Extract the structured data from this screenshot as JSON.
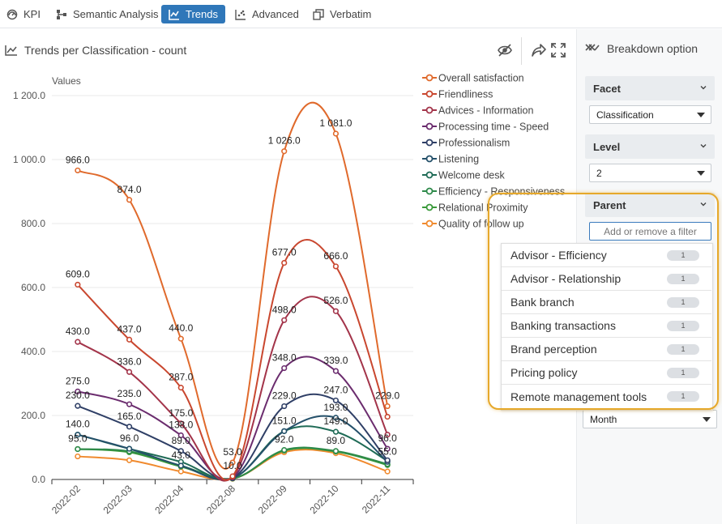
{
  "tabs": [
    {
      "label": "KPI",
      "icon": "gauge-icon"
    },
    {
      "label": "Semantic Analysis",
      "icon": "hierarchy-icon"
    },
    {
      "label": "Trends",
      "icon": "trend-icon",
      "active": true
    },
    {
      "label": "Advanced",
      "icon": "scatter-icon"
    },
    {
      "label": "Verbatim",
      "icon": "copy-icon"
    }
  ],
  "chart_panel": {
    "title": "Trends per Classification - count",
    "icons": [
      "eye-off-icon",
      "share-icon",
      "fullscreen-icon"
    ]
  },
  "sidebar": {
    "title": "Breakdown option",
    "facet": {
      "label": "Facet",
      "value": "Classification"
    },
    "level": {
      "label": "Level",
      "value": "2"
    },
    "parent": {
      "label": "Parent",
      "placeholder": "Add or remove a filter"
    },
    "period": {
      "value": "Month"
    }
  },
  "dropdown": {
    "items": [
      {
        "label": "Advisor - Efficiency",
        "count": "1"
      },
      {
        "label": "Advisor - Relationship",
        "count": "1"
      },
      {
        "label": "Bank branch",
        "count": "1"
      },
      {
        "label": "Banking transactions",
        "count": "1"
      },
      {
        "label": "Brand perception",
        "count": "1"
      },
      {
        "label": "Pricing policy",
        "count": "1"
      },
      {
        "label": "Remote management tools",
        "count": "1"
      }
    ]
  },
  "colors": {
    "accent": "#2f77b9",
    "highlight": "#e6a82a"
  },
  "chart_data": {
    "type": "line",
    "ylabel": "Values",
    "ylim": [
      0,
      1200
    ],
    "yticks": [
      "0.0",
      "200.0",
      "400.0",
      "600.0",
      "800.0",
      "1 000.0",
      "1 200.0"
    ],
    "ytick_values": [
      0,
      200,
      400,
      600,
      800,
      1000,
      1200
    ],
    "categories": [
      "2022-02",
      "2022-03",
      "2022-04",
      "2022-08",
      "2022-09",
      "2022-10",
      "2022-11"
    ],
    "legend_position": "top-right",
    "series": [
      {
        "name": "Overall satisfaction",
        "color": "#e06a2c",
        "values": [
          966,
          874,
          440,
          53,
          1026,
          1081,
          229
        ],
        "labels": [
          "966.0",
          "874.0",
          "440.0",
          "53.0",
          "1 026.0",
          "1 081.0",
          "229.0"
        ]
      },
      {
        "name": "Friendliness",
        "color": "#c9472f",
        "values": [
          609,
          437,
          287,
          10,
          677,
          666,
          196
        ],
        "labels": [
          "609.0",
          "437.0",
          "287.0",
          "10.0",
          "677.0",
          "666.0",
          ""
        ]
      },
      {
        "name": "Advices - Information",
        "color": "#a3344a",
        "values": [
          430,
          336,
          175,
          8,
          498,
          526,
          140
        ],
        "labels": [
          "430.0",
          "336.0",
          "175.0",
          "",
          "498.0",
          "526.0",
          ""
        ]
      },
      {
        "name": "Processing time - Speed",
        "color": "#6b2c6e",
        "values": [
          275,
          235,
          138,
          6,
          348,
          339,
          96
        ],
        "labels": [
          "275.0",
          "235.0",
          "138.0",
          "",
          "348.0",
          "339.0",
          "96.0"
        ]
      },
      {
        "name": "Professionalism",
        "color": "#2f3f66",
        "values": [
          230,
          165,
          89,
          5,
          229,
          247,
          60
        ],
        "labels": [
          "230.0",
          "165.0",
          "89.0",
          "",
          "229.0",
          "247.0",
          ""
        ]
      },
      {
        "name": "Listening",
        "color": "#24506a",
        "values": [
          140,
          96,
          43,
          4,
          151,
          193,
          55
        ],
        "labels": [
          "140.0",
          "96.0",
          "43.0",
          "",
          "151.0",
          "193.0",
          "55.0"
        ]
      },
      {
        "name": "Welcome desk",
        "color": "#1f6b56",
        "values": [
          140,
          96,
          55,
          4,
          151,
          149,
          58
        ],
        "labels": [
          "",
          "",
          "",
          "",
          "",
          "149.0",
          ""
        ]
      },
      {
        "name": "Efficiency - Responsiveness",
        "color": "#2e8a4a",
        "values": [
          95,
          88,
          43,
          3,
          92,
          89,
          48
        ],
        "labels": [
          "95.0",
          "",
          "",
          "",
          "92.0",
          "89.0",
          ""
        ]
      },
      {
        "name": "Relational Proximity",
        "color": "#3a9a3a",
        "values": [
          95,
          85,
          40,
          3,
          90,
          87,
          45
        ],
        "labels": [
          "",
          "",
          "",
          "",
          "",
          "",
          ""
        ]
      },
      {
        "name": "Quality of follow up",
        "color": "#f08a2e",
        "values": [
          72,
          60,
          25,
          2,
          85,
          82,
          25
        ],
        "labels": [
          "",
          "",
          "",
          "",
          "",
          "",
          ""
        ]
      }
    ]
  }
}
